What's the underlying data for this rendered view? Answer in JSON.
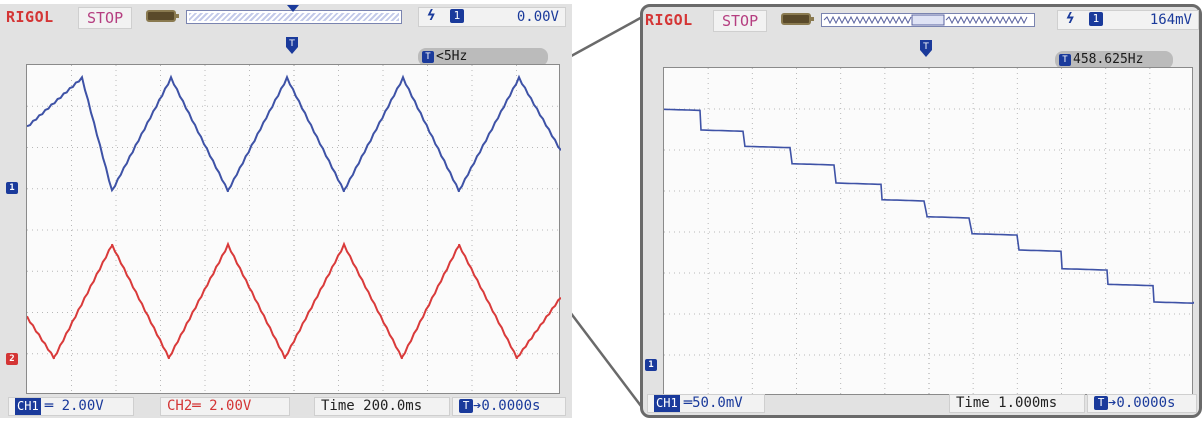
{
  "left_scope": {
    "brand": "RIGOL",
    "status": "STOP",
    "trigger_level": "0.00V",
    "trigger_channel": "1",
    "trigger_marker": "T",
    "frequency": "<5Hz",
    "frequency_icon": "T",
    "ch1_marker": "1",
    "ch2_marker": "2",
    "ch1_tag": "CH1",
    "ch1_coupling": "═",
    "ch1_scale": "2.00V",
    "ch2_label": "CH2═",
    "ch2_scale": "2.00V",
    "time_label": "Time",
    "time_scale": "200.0ms",
    "offset_icon": "T",
    "time_offset": "➔0.0000s",
    "colors": {
      "ch1": "#3e52a6",
      "ch2": "#d93a3a"
    }
  },
  "right_scope": {
    "brand": "RIGOL",
    "status": "STOP",
    "trigger_level": "164mV",
    "trigger_channel": "1",
    "trigger_marker": "T",
    "frequency": "458.625Hz",
    "frequency_icon": "T",
    "ch1_marker": "1",
    "ch1_tag": "CH1",
    "ch1_coupling": "═",
    "ch1_scale": "50.0mV",
    "time_label": "Time",
    "time_scale": "1.000ms",
    "offset_icon": "T",
    "time_offset": "➔0.0000s",
    "colors": {
      "ch1": "#3e52a6"
    }
  },
  "icons": {
    "battery": "battery-icon",
    "trigger_edge": "trigger-edge-icon",
    "zoom_circle": "zoom-circle-icon"
  }
}
